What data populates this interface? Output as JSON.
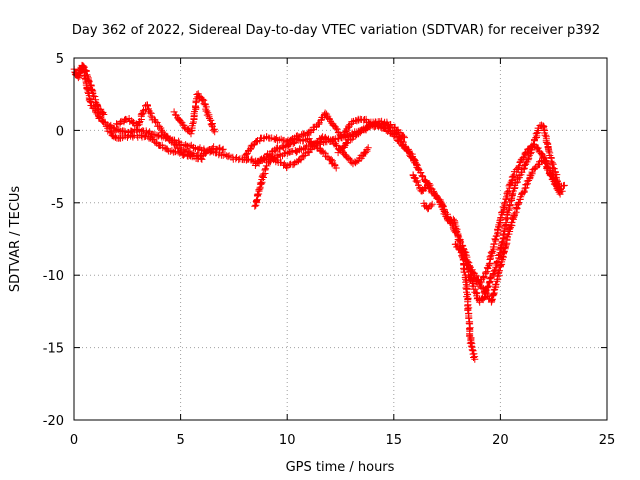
{
  "chart_data": {
    "type": "scatter",
    "title": "Day 362 of 2022, Sidereal Day-to-day VTEC variation (SDTVAR) for receiver p392",
    "xlabel": "GPS time / hours",
    "ylabel": "SDTVAR / TECUs",
    "xlim": [
      0,
      25
    ],
    "ylim": [
      -20,
      5
    ],
    "xticks": [
      0,
      5,
      10,
      15,
      20,
      25
    ],
    "yticks": [
      5,
      0,
      -5,
      -10,
      -15,
      -20
    ],
    "grid": true,
    "marker": "+",
    "color": "#ff0000",
    "series": [
      {
        "name": "p392",
        "tracks": [
          [
            [
              0.0,
              4.2
            ],
            [
              0.2,
              3.6
            ],
            [
              0.4,
              4.4
            ],
            [
              0.6,
              3.0
            ],
            [
              0.8,
              1.8
            ],
            [
              1.0,
              1.4
            ],
            [
              1.2,
              0.9
            ],
            [
              1.5,
              0.5
            ],
            [
              1.8,
              0.2
            ],
            [
              2.0,
              0.0
            ],
            [
              2.5,
              -0.1
            ],
            [
              3.0,
              0.0
            ],
            [
              3.5,
              -0.1
            ],
            [
              4.0,
              -0.4
            ],
            [
              4.5,
              -0.6
            ],
            [
              5.0,
              -0.9
            ],
            [
              5.5,
              -1.1
            ],
            [
              6.0,
              -1.3
            ],
            [
              6.5,
              -1.5
            ],
            [
              7.0,
              -1.7
            ],
            [
              7.5,
              -1.9
            ],
            [
              8.0,
              -2.0
            ],
            [
              8.5,
              -2.1
            ],
            [
              9.0,
              -2.0
            ],
            [
              9.5,
              -1.8
            ],
            [
              10.0,
              -1.6
            ],
            [
              10.5,
              -1.4
            ],
            [
              11.0,
              -1.1
            ],
            [
              11.5,
              -0.9
            ],
            [
              12.0,
              -0.7
            ],
            [
              12.5,
              -0.5
            ],
            [
              13.0,
              -0.3
            ],
            [
              13.5,
              0.0
            ],
            [
              14.0,
              0.3
            ],
            [
              14.5,
              0.4
            ],
            [
              15.0,
              0.0
            ],
            [
              15.3,
              -0.6
            ],
            [
              15.6,
              -1.2
            ],
            [
              15.9,
              -2.0
            ],
            [
              16.2,
              -2.8
            ],
            [
              16.5,
              -3.5
            ],
            [
              16.8,
              -4.1
            ],
            [
              17.1,
              -4.8
            ],
            [
              17.4,
              -5.6
            ],
            [
              17.7,
              -6.5
            ],
            [
              18.0,
              -7.3
            ],
            [
              18.3,
              -8.3
            ],
            [
              18.6,
              -9.5
            ],
            [
              18.9,
              -10.2
            ],
            [
              19.1,
              -10.5
            ],
            [
              19.4,
              -9.6
            ],
            [
              19.7,
              -8.0
            ],
            [
              20.0,
              -6.2
            ],
            [
              20.3,
              -4.5
            ],
            [
              20.6,
              -3.2
            ],
            [
              20.9,
              -2.3
            ],
            [
              21.2,
              -1.5
            ],
            [
              21.5,
              -1.0
            ],
            [
              21.8,
              -1.3
            ],
            [
              22.1,
              -2.0
            ],
            [
              22.4,
              -3.0
            ],
            [
              22.7,
              -4.0
            ],
            [
              22.9,
              -4.2
            ]
          ],
          [
            [
              0.1,
              3.8
            ],
            [
              0.4,
              4.5
            ],
            [
              0.6,
              4.0
            ],
            [
              0.9,
              2.5
            ],
            [
              1.1,
              1.6
            ],
            [
              1.4,
              1.1
            ]
          ],
          [
            [
              2.0,
              0.4
            ],
            [
              2.5,
              0.8
            ],
            [
              3.0,
              0.3
            ],
            [
              3.4,
              1.8
            ],
            [
              3.7,
              0.8
            ],
            [
              4.0,
              0.2
            ],
            [
              4.5,
              -0.7
            ],
            [
              5.0,
              -1.3
            ],
            [
              5.5,
              -1.6
            ],
            [
              6.0,
              -1.8
            ],
            [
              6.5,
              -1.2
            ],
            [
              7.0,
              -1.3
            ]
          ],
          [
            [
              1.5,
              0.2
            ],
            [
              2.0,
              -0.6
            ],
            [
              2.5,
              -0.4
            ],
            [
              3.0,
              -0.4
            ],
            [
              3.5,
              -0.5
            ],
            [
              4.0,
              -1.0
            ],
            [
              4.5,
              -1.4
            ],
            [
              5.0,
              -1.6
            ],
            [
              5.5,
              -1.8
            ],
            [
              6.0,
              -2.0
            ]
          ],
          [
            [
              4.7,
              1.2
            ],
            [
              5.1,
              0.4
            ],
            [
              5.5,
              -0.2
            ],
            [
              5.8,
              2.5
            ],
            [
              6.1,
              2.0
            ],
            [
              6.3,
              1.0
            ],
            [
              6.6,
              -0.1
            ]
          ],
          [
            [
              8.5,
              -5.2
            ],
            [
              8.7,
              -4.0
            ],
            [
              8.9,
              -3.0
            ],
            [
              9.1,
              -2.3
            ],
            [
              9.3,
              -1.9
            ],
            [
              9.6,
              -2.2
            ],
            [
              10.0,
              -2.5
            ],
            [
              10.5,
              -2.1
            ],
            [
              11.0,
              -1.5
            ],
            [
              11.3,
              -1.0
            ],
            [
              11.6,
              -0.5
            ],
            [
              12.0,
              -0.6
            ],
            [
              12.4,
              -1.2
            ],
            [
              12.8,
              -1.8
            ],
            [
              13.1,
              -2.3
            ],
            [
              13.5,
              -1.8
            ],
            [
              13.8,
              -1.2
            ]
          ],
          [
            [
              8.0,
              -1.8
            ],
            [
              8.5,
              -0.8
            ],
            [
              9.0,
              -0.4
            ],
            [
              9.5,
              -0.6
            ],
            [
              10.0,
              -0.8
            ],
            [
              10.5,
              -0.4
            ],
            [
              11.0,
              -0.2
            ],
            [
              11.5,
              0.5
            ],
            [
              11.8,
              1.2
            ],
            [
              12.2,
              0.3
            ],
            [
              12.6,
              -0.5
            ],
            [
              13.0,
              0.5
            ],
            [
              13.5,
              0.8
            ],
            [
              14.0,
              0.5
            ],
            [
              14.5,
              0.2
            ],
            [
              15.0,
              -0.3
            ],
            [
              15.4,
              -1.0
            ],
            [
              15.8,
              -1.6
            ],
            [
              16.1,
              -2.4
            ]
          ],
          [
            [
              8.5,
              -2.4
            ],
            [
              9.0,
              -1.8
            ],
            [
              9.5,
              -1.3
            ],
            [
              10.0,
              -1.0
            ],
            [
              10.5,
              -0.7
            ],
            [
              11.0,
              -0.6
            ],
            [
              11.5,
              -1.3
            ],
            [
              12.0,
              -2.0
            ],
            [
              12.3,
              -2.6
            ]
          ],
          [
            [
              12.4,
              -1.5
            ],
            [
              12.9,
              -0.7
            ],
            [
              13.3,
              -0.2
            ],
            [
              13.7,
              0.2
            ],
            [
              14.1,
              0.5
            ],
            [
              14.6,
              0.6
            ],
            [
              15.1,
              0.1
            ],
            [
              15.5,
              -0.5
            ]
          ],
          [
            [
              15.9,
              -3.0
            ],
            [
              16.1,
              -3.5
            ],
            [
              16.3,
              -4.2
            ],
            [
              16.6,
              -3.8
            ],
            [
              16.9,
              -4.5
            ],
            [
              17.2,
              -4.9
            ],
            [
              17.5,
              -6.2
            ],
            [
              17.8,
              -6.2
            ],
            [
              18.0,
              -7.2
            ],
            [
              18.2,
              -8.5
            ],
            [
              18.4,
              -10.6
            ],
            [
              18.5,
              -12.5
            ],
            [
              18.6,
              -14.5
            ],
            [
              18.7,
              -15.4
            ],
            [
              18.8,
              -15.8
            ]
          ],
          [
            [
              16.4,
              -5.1
            ],
            [
              16.6,
              -5.4
            ],
            [
              16.8,
              -5.1
            ]
          ],
          [
            [
              18.5,
              -10.0
            ],
            [
              18.8,
              -11.0
            ],
            [
              19.0,
              -11.8
            ],
            [
              19.2,
              -11.6
            ],
            [
              19.5,
              -10.4
            ],
            [
              19.8,
              -9.4
            ],
            [
              20.1,
              -7.6
            ],
            [
              20.4,
              -5.4
            ],
            [
              20.7,
              -3.8
            ],
            [
              21.0,
              -2.8
            ],
            [
              21.3,
              -2.0
            ],
            [
              21.6,
              -0.8
            ],
            [
              21.8,
              0.2
            ],
            [
              22.0,
              0.4
            ],
            [
              22.2,
              -1.0
            ],
            [
              22.5,
              -2.6
            ],
            [
              22.8,
              -3.9
            ],
            [
              23.0,
              -3.8
            ]
          ],
          [
            [
              17.9,
              -7.8
            ],
            [
              18.3,
              -8.8
            ],
            [
              18.7,
              -10.2
            ],
            [
              19.1,
              -10.8
            ],
            [
              19.6,
              -11.8
            ],
            [
              20.0,
              -9.5
            ],
            [
              20.4,
              -7.0
            ],
            [
              20.8,
              -5.2
            ],
            [
              21.2,
              -3.8
            ],
            [
              21.6,
              -2.6
            ],
            [
              22.0,
              -2.0
            ],
            [
              22.4,
              -3.2
            ],
            [
              22.8,
              -4.4
            ]
          ]
        ]
      }
    ]
  }
}
